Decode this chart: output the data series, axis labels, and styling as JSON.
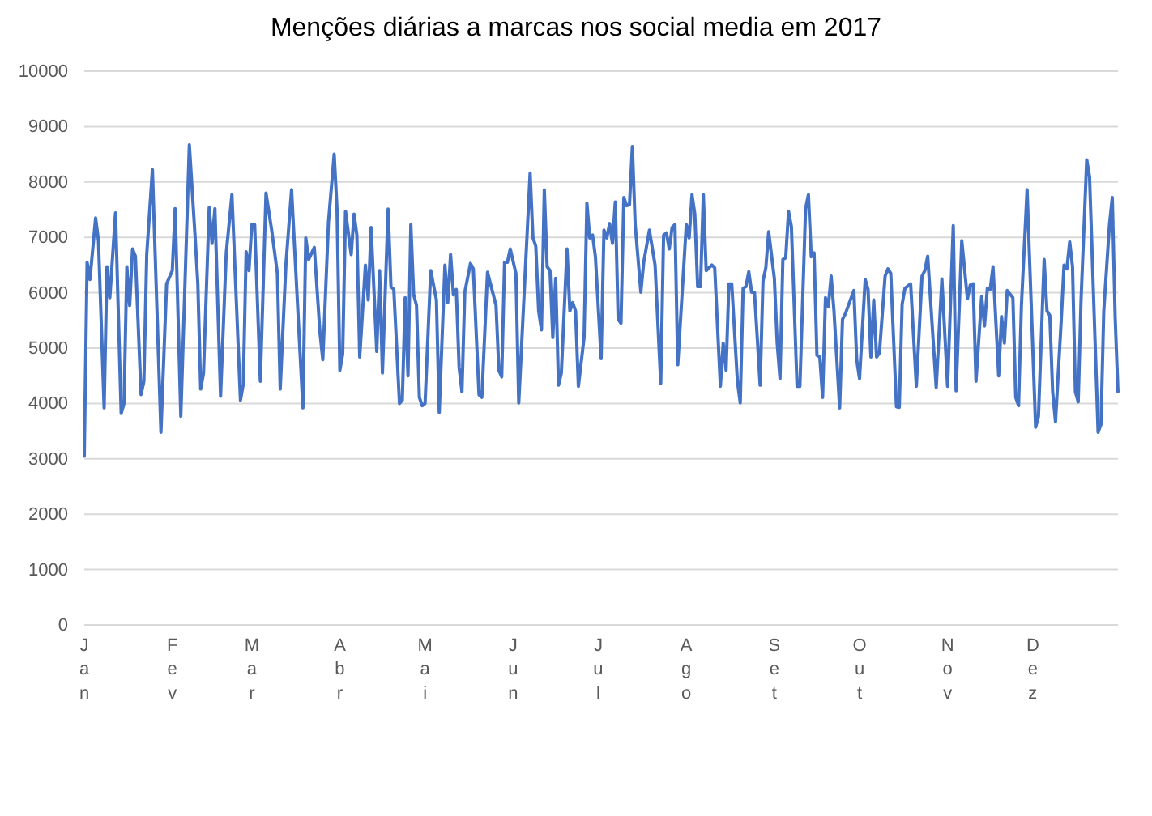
{
  "chart_data": {
    "type": "line",
    "title": "Menções diárias a marcas nos social media em 2017",
    "xlim": [
      "2017-01-01",
      "2017-12-31"
    ],
    "xticks": [
      {
        "value": "2017-01-01",
        "label": "Jan"
      },
      {
        "value": "2017-02-01",
        "label": "Fev"
      },
      {
        "value": "2017-03-01",
        "label": "Mar"
      },
      {
        "value": "2017-04-01",
        "label": "Abr"
      },
      {
        "value": "2017-05-01",
        "label": "Mai"
      },
      {
        "value": "2017-06-01",
        "label": "Jun"
      },
      {
        "value": "2017-07-01",
        "label": "Jul"
      },
      {
        "value": "2017-08-01",
        "label": "Ago"
      },
      {
        "value": "2017-09-01",
        "label": "Set"
      },
      {
        "value": "2017-10-01",
        "label": "Out"
      },
      {
        "value": "2017-11-01",
        "label": "Nov"
      },
      {
        "value": "2017-12-01",
        "label": "Dez"
      }
    ],
    "ylim": [
      0,
      10000
    ],
    "yticks": [
      0,
      1000,
      2000,
      3000,
      4000,
      5000,
      6000,
      7000,
      8000,
      9000,
      10000
    ],
    "grid": "y",
    "marker": "none",
    "line_style": "solid",
    "series": [
      {
        "color": "#4472c4",
        "x": [
          "2017-01-01",
          "2017-01-02",
          "2017-01-03",
          "2017-01-05",
          "2017-01-06",
          "2017-01-08",
          "2017-01-09",
          "2017-01-10",
          "2017-01-12",
          "2017-01-14",
          "2017-01-15",
          "2017-01-16",
          "2017-01-17",
          "2017-01-18",
          "2017-01-19",
          "2017-01-21",
          "2017-01-22",
          "2017-01-23",
          "2017-01-25",
          "2017-01-28",
          "2017-01-30",
          "2017-02-01",
          "2017-02-02",
          "2017-02-04",
          "2017-02-07",
          "2017-02-09",
          "2017-02-10",
          "2017-02-11",
          "2017-02-12",
          "2017-02-14",
          "2017-02-15",
          "2017-02-16",
          "2017-02-18",
          "2017-02-20",
          "2017-02-22",
          "2017-02-25",
          "2017-02-26",
          "2017-02-27",
          "2017-02-28",
          "2017-03-01",
          "2017-03-02",
          "2017-03-04",
          "2017-03-06",
          "2017-03-08",
          "2017-03-10",
          "2017-03-11",
          "2017-03-13",
          "2017-03-15",
          "2017-03-19",
          "2017-03-20",
          "2017-03-21",
          "2017-03-23",
          "2017-03-25",
          "2017-03-26",
          "2017-03-28",
          "2017-03-30",
          "2017-03-31",
          "2017-04-01",
          "2017-04-02",
          "2017-04-03",
          "2017-04-05",
          "2017-04-06",
          "2017-04-07",
          "2017-04-08",
          "2017-04-10",
          "2017-04-11",
          "2017-04-12",
          "2017-04-14",
          "2017-04-15",
          "2017-04-16",
          "2017-04-18",
          "2017-04-19",
          "2017-04-20",
          "2017-04-22",
          "2017-04-23",
          "2017-04-24",
          "2017-04-25",
          "2017-04-26",
          "2017-04-27",
          "2017-04-28",
          "2017-04-29",
          "2017-04-30",
          "2017-05-01",
          "2017-05-03",
          "2017-05-05",
          "2017-05-06",
          "2017-05-08",
          "2017-05-09",
          "2017-05-10",
          "2017-05-11",
          "2017-05-12",
          "2017-05-13",
          "2017-05-14",
          "2017-05-15",
          "2017-05-17",
          "2017-05-18",
          "2017-05-20",
          "2017-05-21",
          "2017-05-23",
          "2017-05-26",
          "2017-05-27",
          "2017-05-28",
          "2017-05-29",
          "2017-05-30",
          "2017-05-31",
          "2017-06-02",
          "2017-06-03",
          "2017-06-07",
          "2017-06-08",
          "2017-06-09",
          "2017-06-10",
          "2017-06-11",
          "2017-06-12",
          "2017-06-13",
          "2017-06-14",
          "2017-06-15",
          "2017-06-16",
          "2017-06-17",
          "2017-06-18",
          "2017-06-20",
          "2017-06-21",
          "2017-06-22",
          "2017-06-23",
          "2017-06-24",
          "2017-06-26",
          "2017-06-27",
          "2017-06-28",
          "2017-06-29",
          "2017-06-30",
          "2017-07-02",
          "2017-07-03",
          "2017-07-04",
          "2017-07-05",
          "2017-07-06",
          "2017-07-07",
          "2017-07-08",
          "2017-07-09",
          "2017-07-10",
          "2017-07-11",
          "2017-07-12",
          "2017-07-13",
          "2017-07-14",
          "2017-07-16",
          "2017-07-17",
          "2017-07-19",
          "2017-07-21",
          "2017-07-23",
          "2017-07-24",
          "2017-07-25",
          "2017-07-26",
          "2017-07-27",
          "2017-07-28",
          "2017-07-29",
          "2017-08-01",
          "2017-08-02",
          "2017-08-03",
          "2017-08-04",
          "2017-08-05",
          "2017-08-06",
          "2017-08-07",
          "2017-08-08",
          "2017-08-10",
          "2017-08-11",
          "2017-08-13",
          "2017-08-14",
          "2017-08-15",
          "2017-08-16",
          "2017-08-17",
          "2017-08-19",
          "2017-08-20",
          "2017-08-21",
          "2017-08-22",
          "2017-08-23",
          "2017-08-24",
          "2017-08-25",
          "2017-08-27",
          "2017-08-28",
          "2017-08-29",
          "2017-08-30",
          "2017-09-01",
          "2017-09-02",
          "2017-09-03",
          "2017-09-04",
          "2017-09-05",
          "2017-09-06",
          "2017-09-07",
          "2017-09-09",
          "2017-09-10",
          "2017-09-12",
          "2017-09-13",
          "2017-09-14",
          "2017-09-15",
          "2017-09-16",
          "2017-09-17",
          "2017-09-18",
          "2017-09-19",
          "2017-09-20",
          "2017-09-21",
          "2017-09-22",
          "2017-09-24",
          "2017-09-25",
          "2017-09-26",
          "2017-09-29",
          "2017-09-30",
          "2017-10-01",
          "2017-10-03",
          "2017-10-04",
          "2017-10-05",
          "2017-10-06",
          "2017-10-07",
          "2017-10-08",
          "2017-10-10",
          "2017-10-11",
          "2017-10-12",
          "2017-10-14",
          "2017-10-15",
          "2017-10-16",
          "2017-10-17",
          "2017-10-19",
          "2017-10-21",
          "2017-10-23",
          "2017-10-24",
          "2017-10-25",
          "2017-10-28",
          "2017-10-30",
          "2017-11-01",
          "2017-11-03",
          "2017-11-04",
          "2017-11-06",
          "2017-11-08",
          "2017-11-09",
          "2017-11-10",
          "2017-11-11",
          "2017-11-13",
          "2017-11-14",
          "2017-11-15",
          "2017-11-16",
          "2017-11-17",
          "2017-11-19",
          "2017-11-20",
          "2017-11-21",
          "2017-11-22",
          "2017-11-24",
          "2017-11-25",
          "2017-11-26",
          "2017-11-27",
          "2017-11-29",
          "2017-12-02",
          "2017-12-03",
          "2017-12-05",
          "2017-12-06",
          "2017-12-07",
          "2017-12-08",
          "2017-12-09",
          "2017-12-11",
          "2017-12-12",
          "2017-12-13",
          "2017-12-14",
          "2017-12-15",
          "2017-12-16",
          "2017-12-17",
          "2017-12-18",
          "2017-12-20",
          "2017-12-21",
          "2017-12-24",
          "2017-12-25",
          "2017-12-26",
          "2017-12-28",
          "2017-12-29",
          "2017-12-30",
          "2017-12-31"
        ],
        "values": [
          3050,
          6550,
          6240,
          7350,
          6940,
          3920,
          6470,
          5910,
          7440,
          3820,
          4000,
          6470,
          5770,
          6790,
          6660,
          4160,
          4400,
          6690,
          8220,
          3480,
          6160,
          6400,
          7520,
          3770,
          8670,
          7040,
          6160,
          4260,
          4550,
          7540,
          6890,
          7520,
          4130,
          6720,
          7770,
          4060,
          4350,
          6740,
          6400,
          7230,
          7230,
          4400,
          7800,
          7130,
          6350,
          4260,
          6500,
          7860,
          3920,
          6990,
          6600,
          6820,
          5280,
          4790,
          7280,
          8500,
          7520,
          4600,
          4890,
          7470,
          6690,
          7420,
          7040,
          4840,
          6500,
          5870,
          7180,
          4940,
          6400,
          4550,
          7510,
          6110,
          6060,
          4000,
          4060,
          5910,
          4500,
          7230,
          5960,
          5770,
          4110,
          3960,
          4000,
          6400,
          5870,
          3840,
          6500,
          5820,
          6690,
          5960,
          6060,
          4650,
          4210,
          6010,
          6530,
          6430,
          4160,
          4110,
          6370,
          5770,
          4600,
          4480,
          6550,
          6550,
          6790,
          6350,
          4010,
          8160,
          6990,
          6840,
          5670,
          5330,
          7860,
          6470,
          6400,
          5190,
          6260,
          4330,
          4550,
          6790,
          5670,
          5820,
          5670,
          4310,
          5190,
          7620,
          6990,
          7040,
          6650,
          4810,
          7130,
          6990,
          7250,
          6890,
          7640,
          5520,
          5450,
          7720,
          7570,
          7590,
          8640,
          7230,
          6010,
          6550,
          7130,
          6500,
          4360,
          7040,
          7080,
          6790,
          7180,
          7230,
          4700,
          7230,
          6990,
          7770,
          7420,
          6110,
          6110,
          7770,
          6400,
          6500,
          6450,
          4310,
          5090,
          4600,
          6160,
          6160,
          4400,
          4010,
          6080,
          6110,
          6380,
          6010,
          6010,
          4330,
          6210,
          6450,
          7100,
          6260,
          5090,
          4450,
          6600,
          6630,
          7470,
          7200,
          4310,
          4310,
          7520,
          7770,
          6650,
          6720,
          4870,
          4840,
          4110,
          5910,
          5750,
          6300,
          5670,
          3920,
          5520,
          5620,
          6040,
          4790,
          4450,
          6240,
          6060,
          4840,
          5870,
          4840,
          4910,
          6300,
          6430,
          6350,
          3940,
          3930,
          5790,
          6080,
          6160,
          4310,
          6300,
          6400,
          6660,
          4290,
          6250,
          4310,
          7210,
          4230,
          6940,
          5890,
          6140,
          6160,
          4400,
          5930,
          5400,
          6080,
          6060,
          6470,
          4500,
          5570,
          5090,
          6040,
          5910,
          4110,
          3960,
          5770,
          7860,
          3570,
          3770,
          6600,
          5670,
          5590,
          4210,
          3670,
          5480,
          6500,
          6430,
          6920,
          6470,
          4210,
          4030,
          5870,
          8400,
          8090,
          3480,
          3620,
          5670,
          7230,
          7720,
          5570,
          4210
        ]
      }
    ]
  }
}
